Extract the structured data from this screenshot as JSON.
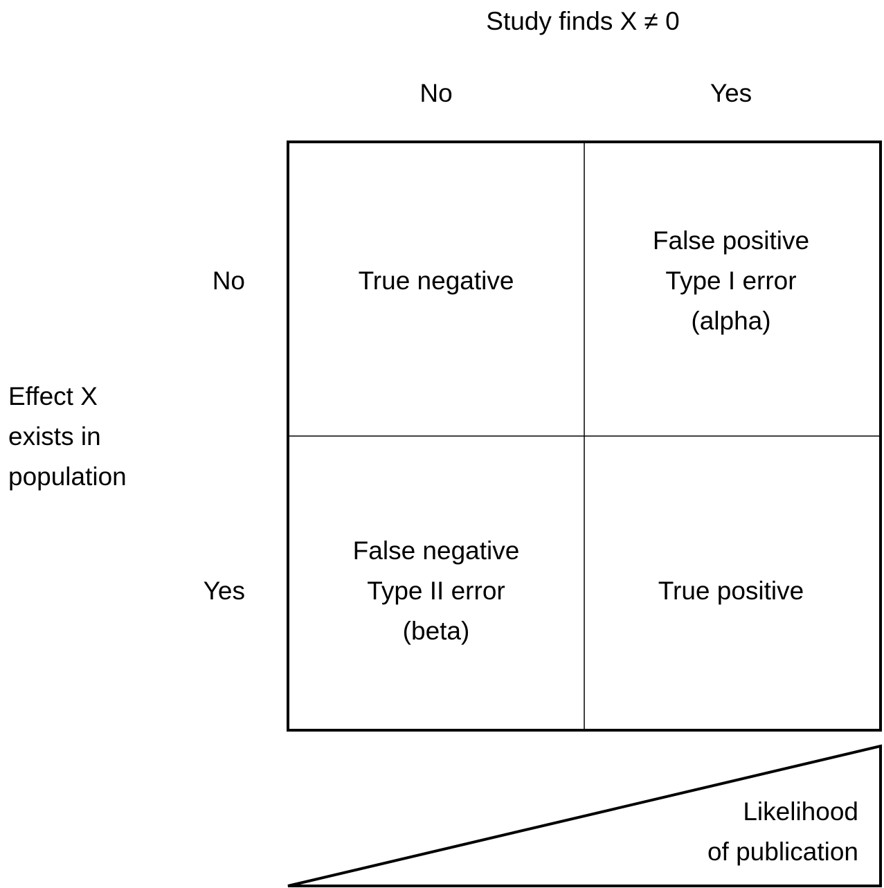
{
  "title": "Study finds X ≠ 0",
  "columns": [
    "No",
    "Yes"
  ],
  "row_axis_label": [
    "Effect X",
    "exists in",
    "population"
  ],
  "rows": [
    "No",
    "Yes"
  ],
  "cells": [
    [
      [
        "True negative"
      ],
      [
        "False positive",
        "Type I error",
        "(alpha)"
      ]
    ],
    [
      [
        "False negative",
        "Type II error",
        "(beta)"
      ],
      [
        "True positive"
      ]
    ]
  ],
  "triangle_label": [
    "Likelihood",
    "of publication"
  ]
}
